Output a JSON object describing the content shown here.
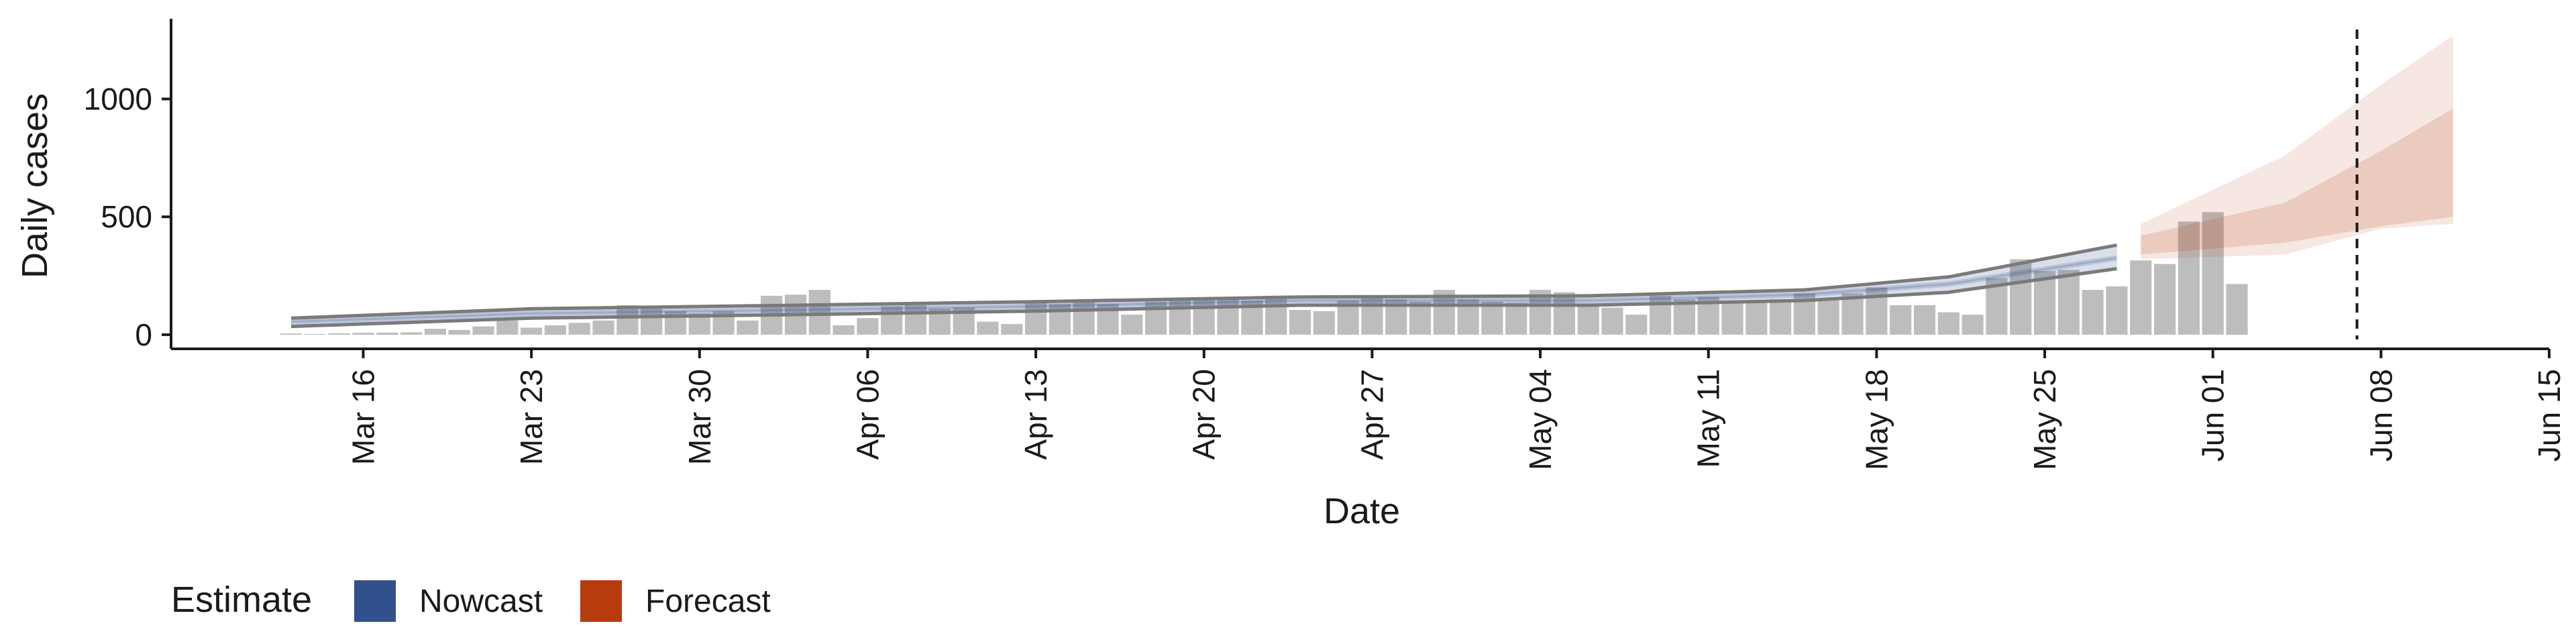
{
  "chart_data": {
    "type": "bar",
    "xlabel": "Date",
    "ylabel": "Daily cases",
    "x_range": [
      "2020-03-08",
      "2020-06-15"
    ],
    "ylim": [
      -60,
      1340
    ],
    "y_ticks": [
      0,
      500,
      1000
    ],
    "x_ticks": [
      {
        "date": "2020-03-16",
        "label": "Mar 16"
      },
      {
        "date": "2020-03-23",
        "label": "Mar 23"
      },
      {
        "date": "2020-03-30",
        "label": "Mar 30"
      },
      {
        "date": "2020-04-06",
        "label": "Apr 06"
      },
      {
        "date": "2020-04-13",
        "label": "Apr 13"
      },
      {
        "date": "2020-04-20",
        "label": "Apr 20"
      },
      {
        "date": "2020-04-27",
        "label": "Apr 27"
      },
      {
        "date": "2020-05-04",
        "label": "May 04"
      },
      {
        "date": "2020-05-11",
        "label": "May 11"
      },
      {
        "date": "2020-05-18",
        "label": "May 18"
      },
      {
        "date": "2020-05-25",
        "label": "May 25"
      },
      {
        "date": "2020-06-01",
        "label": "Jun 01"
      },
      {
        "date": "2020-06-08",
        "label": "Jun 08"
      },
      {
        "date": "2020-06-15",
        "label": "Jun 15"
      }
    ],
    "grid": false,
    "bars": {
      "start_date": "2020-03-13",
      "values": [
        5,
        3,
        6,
        8,
        9,
        10,
        25,
        20,
        35,
        60,
        30,
        40,
        50,
        60,
        125,
        110,
        100,
        90,
        100,
        60,
        165,
        170,
        190,
        40,
        70,
        120,
        125,
        110,
        115,
        55,
        45,
        135,
        130,
        140,
        130,
        85,
        140,
        150,
        155,
        160,
        145,
        160,
        105,
        100,
        145,
        160,
        150,
        140,
        190,
        150,
        140,
        135,
        190,
        180,
        125,
        115,
        85,
        165,
        150,
        160,
        140,
        145,
        150,
        175,
        155,
        175,
        200,
        125,
        125,
        95,
        85,
        240,
        320,
        270,
        275,
        190,
        205,
        315,
        300,
        480,
        520,
        215
      ],
      "color": "#bdbdbd"
    },
    "vline_date": "2020-06-07",
    "series": [
      {
        "name": "Nowcast",
        "color": "#32508b",
        "start_date": "2020-03-13",
        "end_date": "2020-05-28",
        "median_knots": [
          [
            "2020-03-13",
            55
          ],
          [
            "2020-03-23",
            90
          ],
          [
            "2020-04-03",
            105
          ],
          [
            "2020-04-13",
            120
          ],
          [
            "2020-04-24",
            145
          ],
          [
            "2020-05-06",
            145
          ],
          [
            "2020-05-15",
            170
          ],
          [
            "2020-05-21",
            215
          ],
          [
            "2020-05-28",
            325
          ]
        ],
        "lower_knots": [
          [
            "2020-03-13",
            35
          ],
          [
            "2020-03-23",
            70
          ],
          [
            "2020-04-03",
            85
          ],
          [
            "2020-04-13",
            100
          ],
          [
            "2020-04-24",
            125
          ],
          [
            "2020-05-06",
            125
          ],
          [
            "2020-05-15",
            145
          ],
          [
            "2020-05-21",
            180
          ],
          [
            "2020-05-28",
            280
          ]
        ],
        "upper_knots": [
          [
            "2020-03-13",
            70
          ],
          [
            "2020-03-23",
            110
          ],
          [
            "2020-04-03",
            125
          ],
          [
            "2020-04-13",
            140
          ],
          [
            "2020-04-24",
            160
          ],
          [
            "2020-05-06",
            165
          ],
          [
            "2020-05-15",
            190
          ],
          [
            "2020-05-21",
            245
          ],
          [
            "2020-05-28",
            380
          ]
        ]
      },
      {
        "name": "Forecast",
        "color": "#b83b0d",
        "start_date": "2020-05-29",
        "end_date": "2020-06-11",
        "median_knots": [
          [
            "2020-05-29",
            360
          ],
          [
            "2020-06-04",
            440
          ],
          [
            "2020-06-08",
            550
          ],
          [
            "2020-06-11",
            650
          ]
        ],
        "inner_lower_knots": [
          [
            "2020-05-29",
            340
          ],
          [
            "2020-06-04",
            390
          ],
          [
            "2020-06-08",
            460
          ],
          [
            "2020-06-11",
            500
          ]
        ],
        "inner_upper_knots": [
          [
            "2020-05-29",
            420
          ],
          [
            "2020-06-04",
            560
          ],
          [
            "2020-06-08",
            780
          ],
          [
            "2020-06-11",
            960
          ]
        ],
        "outer_lower_knots": [
          [
            "2020-05-29",
            320
          ],
          [
            "2020-06-04",
            340
          ],
          [
            "2020-06-08",
            450
          ],
          [
            "2020-06-11",
            470
          ]
        ],
        "outer_upper_knots": [
          [
            "2020-05-29",
            470
          ],
          [
            "2020-06-04",
            760
          ],
          [
            "2020-06-08",
            1060
          ],
          [
            "2020-06-11",
            1270
          ]
        ]
      }
    ],
    "legend": {
      "title": "Estimate",
      "position": "bottom-left",
      "items": [
        {
          "label": "Nowcast",
          "color": "#32508b"
        },
        {
          "label": "Forecast",
          "color": "#b83b0d"
        }
      ]
    }
  }
}
